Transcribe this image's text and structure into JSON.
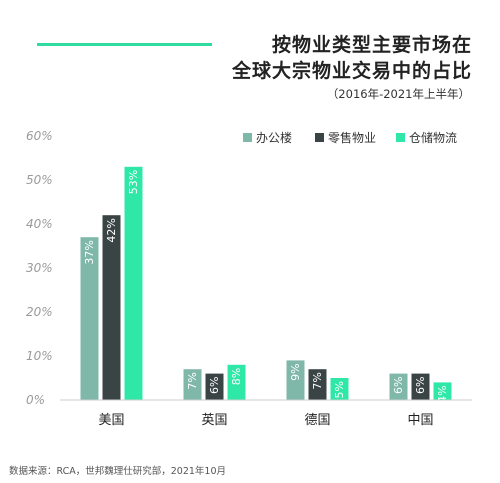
{
  "title_lines": [
    "按物业类型主要市场在",
    "全球大宗物业交易中的占比"
  ],
  "subtitle": "（2016年-2021年上半年）",
  "source": "数据来源：RCA，世邦魏理仕研究部，2021年10月",
  "chart_data": {
    "type": "bar",
    "categories": [
      "美国",
      "英国",
      "德国",
      "中国"
    ],
    "series": [
      {
        "name": "办公楼",
        "values": [
          37,
          7,
          9,
          6
        ],
        "labels": [
          "37%",
          "7%",
          "9%",
          "6%"
        ],
        "color": "#7fb8a8"
      },
      {
        "name": "零售物业",
        "values": [
          42,
          6,
          7,
          6
        ],
        "labels": [
          "42%",
          "6%",
          "7%",
          "6%"
        ],
        "color": "#3a4445"
      },
      {
        "name": "仓储物流",
        "values": [
          53,
          8,
          5,
          4
        ],
        "labels": [
          "53%",
          "8%",
          "5%",
          "4%"
        ],
        "color": "#2fe8a8"
      }
    ],
    "y_ticks": [
      "0%",
      "10%",
      "20%",
      "30%",
      "40%",
      "50%",
      "60%"
    ],
    "ylim": [
      0,
      60
    ],
    "legend_position": "top-right",
    "grid": false
  }
}
